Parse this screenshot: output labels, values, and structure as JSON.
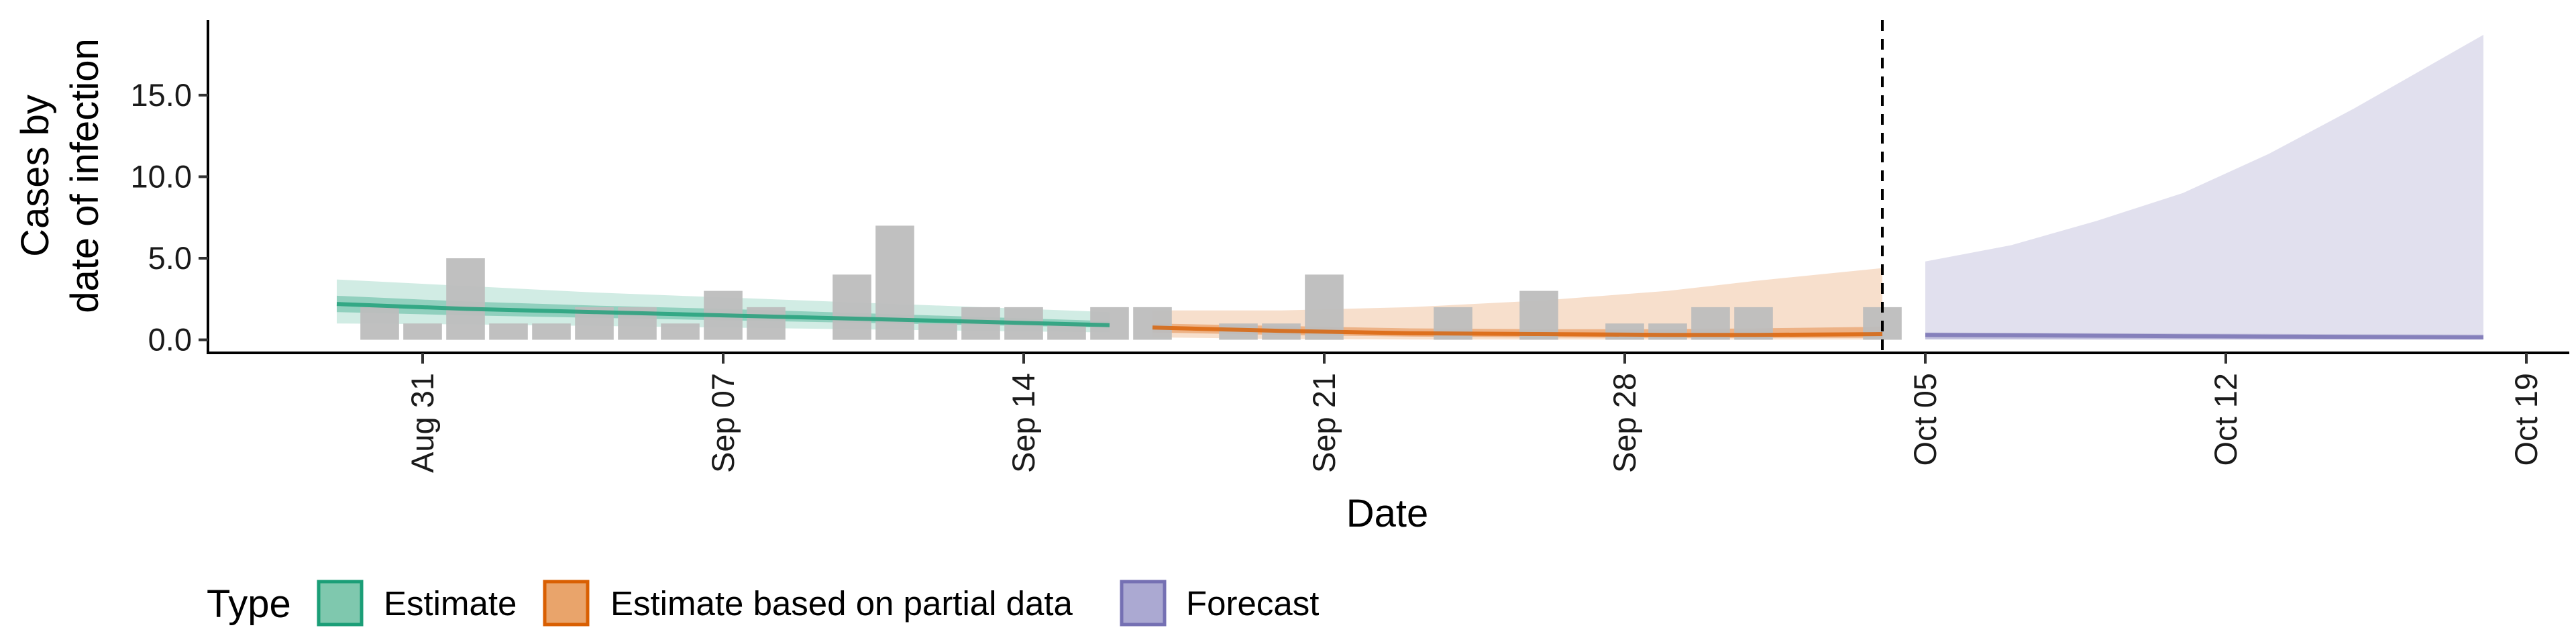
{
  "chart_data": {
    "type": "area",
    "xlabel": "Date",
    "ylabel_lines": [
      "Cases by",
      "date of infection"
    ],
    "y_ticks": [
      0,
      5,
      10,
      15
    ],
    "y_tick_labels": [
      "0.0",
      "5.0",
      "10.0",
      "15.0"
    ],
    "ylim": [
      -0.8,
      19.6
    ],
    "x_range": [
      "2020-08-26",
      "2020-10-20"
    ],
    "x_ticks": [
      "2020-08-31",
      "2020-09-07",
      "2020-09-14",
      "2020-09-21",
      "2020-09-28",
      "2020-10-05",
      "2020-10-12",
      "2020-10-19"
    ],
    "x_tick_labels": [
      "Aug 31",
      "Sep 07",
      "Sep 14",
      "Sep 21",
      "Sep 28",
      "Oct 05",
      "Oct 12",
      "Oct 19"
    ],
    "forecast_start_line": "2020-10-04",
    "bar_color": "#bdbdbd",
    "reported_cases": {
      "dates": [
        "2020-08-30",
        "2020-08-31",
        "2020-09-01",
        "2020-09-02",
        "2020-09-03",
        "2020-09-04",
        "2020-09-05",
        "2020-09-06",
        "2020-09-07",
        "2020-09-08",
        "2020-09-09",
        "2020-09-10",
        "2020-09-11",
        "2020-09-12",
        "2020-09-13",
        "2020-09-14",
        "2020-09-15",
        "2020-09-16",
        "2020-09-17",
        "2020-09-18",
        "2020-09-19",
        "2020-09-20",
        "2020-09-21",
        "2020-09-22",
        "2020-09-23",
        "2020-09-24",
        "2020-09-25",
        "2020-09-26",
        "2020-09-27",
        "2020-09-28",
        "2020-09-29",
        "2020-09-30",
        "2020-10-01",
        "2020-10-02",
        "2020-10-03",
        "2020-10-04"
      ],
      "values": [
        2,
        1,
        5,
        1,
        1,
        2,
        2,
        1,
        3,
        2,
        0,
        4,
        7,
        1,
        2,
        2,
        1,
        2,
        2,
        0,
        1,
        1,
        4,
        0,
        0,
        2,
        0,
        3,
        0,
        1,
        1,
        2,
        2,
        0,
        0,
        2
      ]
    },
    "legend": {
      "title": "Type",
      "placement": "bottom-left",
      "items": [
        {
          "label": "Estimate",
          "fill": "#7fc8ae",
          "stroke": "#1b9e77"
        },
        {
          "label": "Estimate based on partial data",
          "fill": "#e9a46b",
          "stroke": "#d95f02"
        },
        {
          "label": "Forecast",
          "fill": "#aba9d2",
          "stroke": "#7570b3"
        }
      ]
    },
    "series": [
      {
        "type": "Estimate",
        "color": "#1b9e77",
        "x": [
          "2020-08-29",
          "2020-09-01",
          "2020-09-04",
          "2020-09-07",
          "2020-09-10",
          "2020-09-13",
          "2020-09-16"
        ],
        "median": [
          2.2,
          1.9,
          1.7,
          1.5,
          1.3,
          1.1,
          0.9
        ],
        "lower_50": [
          1.7,
          1.5,
          1.35,
          1.2,
          1.05,
          0.9,
          0.75
        ],
        "upper_50": [
          2.7,
          2.35,
          2.1,
          1.9,
          1.65,
          1.4,
          1.15
        ],
        "lower_90": [
          1.0,
          0.95,
          0.85,
          0.75,
          0.65,
          0.55,
          0.45
        ],
        "upper_90": [
          3.7,
          3.3,
          2.9,
          2.6,
          2.3,
          2.0,
          1.7
        ]
      },
      {
        "type": "Estimate based on partial data",
        "color": "#d95f02",
        "x": [
          "2020-09-17",
          "2020-09-20",
          "2020-09-23",
          "2020-09-26",
          "2020-09-29",
          "2020-10-01",
          "2020-10-04"
        ],
        "median": [
          0.75,
          0.55,
          0.4,
          0.35,
          0.3,
          0.3,
          0.35
        ],
        "lower_50": [
          0.45,
          0.3,
          0.2,
          0.15,
          0.12,
          0.12,
          0.12
        ],
        "upper_50": [
          1.0,
          0.85,
          0.7,
          0.65,
          0.65,
          0.7,
          0.8
        ],
        "lower_90": [
          0.15,
          0.05,
          0.02,
          0.02,
          0.02,
          0.02,
          0.02
        ],
        "upper_90": [
          1.8,
          1.8,
          2.0,
          2.4,
          3.0,
          3.6,
          4.4
        ]
      },
      {
        "type": "Forecast",
        "color": "#7570b3",
        "x": [
          "2020-10-05",
          "2020-10-07",
          "2020-10-09",
          "2020-10-11",
          "2020-10-13",
          "2020-10-15",
          "2020-10-18"
        ],
        "median": [
          0.3,
          0.28,
          0.25,
          0.22,
          0.2,
          0.18,
          0.15
        ],
        "lower_50": [
          0.05,
          0.05,
          0.04,
          0.04,
          0.03,
          0.03,
          0.03
        ],
        "upper_50": [
          0.45,
          0.42,
          0.4,
          0.38,
          0.36,
          0.34,
          0.32
        ],
        "lower_90": [
          0.0,
          0.0,
          0.0,
          0.0,
          0.0,
          0.0,
          0.0
        ],
        "upper_90": [
          4.8,
          5.8,
          7.3,
          9.0,
          11.4,
          14.2,
          18.7
        ]
      }
    ]
  }
}
